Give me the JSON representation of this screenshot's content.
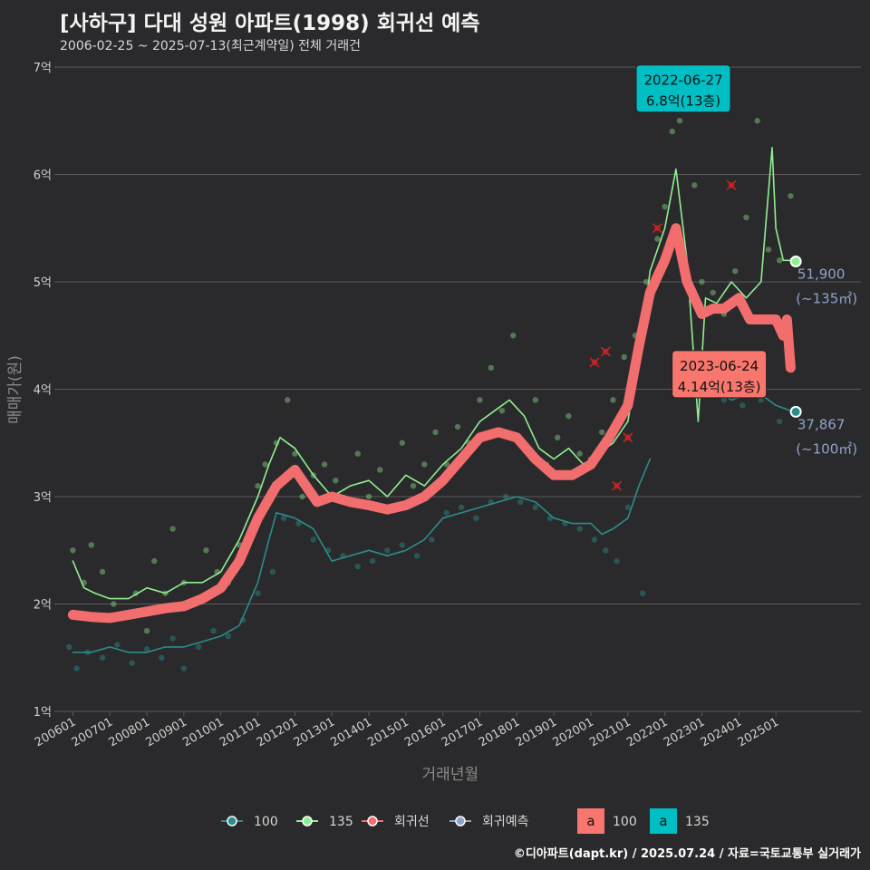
{
  "header": {
    "title": "[사하구] 다대 성원 아파트(1998) 회귀선 예측",
    "subtitle": "2006-02-25 ~ 2025-07-13(최근계약일) 전체 거래건"
  },
  "credit": "©디아파트(dapt.kr) / 2025.07.24 / 자료=국토교통부 실거래가",
  "colors": {
    "background": "#2a2a2c",
    "grid": "#5a5a5c",
    "s100": "#2b8c8c",
    "s135": "#90ee90",
    "regression": "#f26d6d",
    "forecast": "#8fa3c8",
    "label100": "#f8766d",
    "label135": "#00bfc4"
  },
  "chart_data": {
    "type": "line",
    "xlabel": "거래년월",
    "ylabel": "매매가(원)",
    "ylim": [
      1,
      7
    ],
    "yticks": [
      1,
      2,
      3,
      4,
      5,
      6,
      7
    ],
    "ytick_labels": [
      "1억",
      "2억",
      "3억",
      "4억",
      "5억",
      "6억",
      "7억"
    ],
    "xlim": [
      2005.5,
      2027.3
    ],
    "xticks": [
      2006,
      2007,
      2008,
      2009,
      2010,
      2011,
      2012,
      2013,
      2014,
      2015,
      2016,
      2017,
      2018,
      2019,
      2020,
      2021,
      2022,
      2023,
      2024,
      2025
    ],
    "xtick_labels": [
      "200601",
      "200701",
      "200801",
      "200901",
      "201001",
      "201101",
      "201201",
      "201301",
      "201401",
      "201501",
      "201601",
      "201701",
      "201801",
      "201901",
      "202001",
      "202101",
      "202201",
      "202301",
      "202401",
      "202501"
    ],
    "grid": true,
    "series": [
      {
        "name": "100",
        "x": [
          2006.0,
          2006.5,
          2007.0,
          2007.5,
          2008.0,
          2008.5,
          2009.0,
          2009.5,
          2010.0,
          2010.5,
          2011.0,
          2011.3,
          2011.5,
          2012.0,
          2012.5,
          2013.0,
          2013.5,
          2014.0,
          2014.5,
          2015.0,
          2015.5,
          2016.0,
          2016.5,
          2017.0,
          2017.5,
          2018.0,
          2018.5,
          2019.0,
          2019.5,
          2020.0,
          2020.3,
          2020.6,
          2021.0,
          2021.3,
          2021.6
        ],
        "y": [
          1.55,
          1.55,
          1.6,
          1.55,
          1.55,
          1.6,
          1.6,
          1.65,
          1.7,
          1.8,
          2.2,
          2.6,
          2.85,
          2.8,
          2.7,
          2.4,
          2.45,
          2.5,
          2.45,
          2.5,
          2.6,
          2.8,
          2.85,
          2.9,
          2.95,
          3.0,
          2.95,
          2.8,
          2.75,
          2.75,
          2.65,
          2.7,
          2.8,
          3.1,
          3.35
        ]
      },
      {
        "name": "100-recent",
        "x": [
          2023.0,
          2023.4,
          2023.8,
          2024.2,
          2024.6,
          2025.0,
          2025.4
        ],
        "y": [
          4.15,
          4.0,
          3.9,
          3.95,
          3.95,
          3.85,
          3.8
        ]
      },
      {
        "name": "135",
        "x": [
          2006.0,
          2006.3,
          2006.6,
          2007.0,
          2007.5,
          2008.0,
          2008.5,
          2009.0,
          2009.5,
          2010.0,
          2010.5,
          2011.0,
          2011.3,
          2011.6,
          2012.0,
          2012.5,
          2013.0,
          2013.5,
          2014.0,
          2014.5,
          2015.0,
          2015.5,
          2016.0,
          2016.5,
          2017.0,
          2017.4,
          2017.8,
          2018.2,
          2018.6,
          2019.0,
          2019.4,
          2019.8,
          2020.2,
          2020.6,
          2021.0,
          2021.3,
          2021.6,
          2022.0,
          2022.3,
          2022.6,
          2022.9,
          2023.1,
          2023.4,
          2023.8,
          2024.2,
          2024.6,
          2024.9,
          2025.0,
          2025.2,
          2025.5
        ],
        "y": [
          2.4,
          2.15,
          2.1,
          2.05,
          2.05,
          2.15,
          2.1,
          2.2,
          2.2,
          2.3,
          2.6,
          3.0,
          3.3,
          3.55,
          3.45,
          3.2,
          3.0,
          3.1,
          3.15,
          3.0,
          3.2,
          3.1,
          3.3,
          3.45,
          3.7,
          3.8,
          3.9,
          3.75,
          3.45,
          3.35,
          3.45,
          3.3,
          3.4,
          3.5,
          3.7,
          4.3,
          5.1,
          5.5,
          6.05,
          5.2,
          3.7,
          4.85,
          4.8,
          5.0,
          4.85,
          5.0,
          6.25,
          5.5,
          5.2,
          5.2
        ]
      },
      {
        "name": "회귀선",
        "x": [
          2006.0,
          2006.5,
          2007.0,
          2007.5,
          2008.0,
          2008.5,
          2009.0,
          2009.5,
          2010.0,
          2010.5,
          2011.0,
          2011.5,
          2012.0,
          2012.3,
          2012.6,
          2013.0,
          2013.5,
          2014.0,
          2014.5,
          2015.0,
          2015.5,
          2016.0,
          2016.5,
          2017.0,
          2017.5,
          2018.0,
          2018.5,
          2019.0,
          2019.5,
          2020.0,
          2020.5,
          2021.0,
          2021.3,
          2021.6,
          2022.0,
          2022.3,
          2022.6,
          2023.0,
          2023.3,
          2023.6,
          2024.0,
          2024.3,
          2024.6,
          2025.0,
          2025.2,
          2025.3,
          2025.4
        ],
        "y": [
          1.9,
          1.88,
          1.87,
          1.9,
          1.93,
          1.96,
          1.98,
          2.05,
          2.15,
          2.4,
          2.8,
          3.1,
          3.25,
          3.1,
          2.95,
          3.0,
          2.95,
          2.92,
          2.88,
          2.92,
          3.0,
          3.15,
          3.35,
          3.55,
          3.6,
          3.55,
          3.35,
          3.2,
          3.2,
          3.3,
          3.55,
          3.85,
          4.4,
          4.9,
          5.2,
          5.5,
          5.0,
          4.7,
          4.75,
          4.75,
          4.85,
          4.65,
          4.65,
          4.65,
          4.5,
          4.65,
          4.2
        ]
      }
    ],
    "scatter_100": {
      "x": [
        2005.9,
        2006.1,
        2006.4,
        2006.8,
        2007.2,
        2007.6,
        2008.0,
        2008.4,
        2008.7,
        2009.0,
        2009.4,
        2009.8,
        2010.2,
        2010.6,
        2011.0,
        2011.4,
        2011.7,
        2012.1,
        2012.5,
        2012.9,
        2013.3,
        2013.7,
        2014.1,
        2014.5,
        2014.9,
        2015.3,
        2015.7,
        2016.1,
        2016.5,
        2016.9,
        2017.3,
        2017.7,
        2018.1,
        2018.5,
        2018.9,
        2019.3,
        2019.7,
        2020.1,
        2020.4,
        2020.7,
        2021.0,
        2021.4,
        2023.1,
        2023.6,
        2024.1,
        2024.6,
        2025.1
      ],
      "y": [
        1.6,
        1.4,
        1.55,
        1.5,
        1.62,
        1.45,
        1.58,
        1.5,
        1.68,
        1.4,
        1.6,
        1.75,
        1.7,
        1.85,
        2.1,
        2.3,
        2.8,
        2.75,
        2.6,
        2.5,
        2.45,
        2.35,
        2.4,
        2.5,
        2.55,
        2.45,
        2.6,
        2.85,
        2.9,
        2.8,
        2.95,
        3.0,
        2.95,
        2.9,
        2.8,
        2.75,
        2.7,
        2.6,
        2.5,
        2.4,
        2.9,
        2.1,
        3.95,
        3.9,
        3.85,
        3.9,
        3.7
      ]
    },
    "scatter_135": {
      "x": [
        2006.0,
        2006.3,
        2006.5,
        2006.8,
        2007.1,
        2007.4,
        2007.7,
        2008.0,
        2008.2,
        2008.5,
        2008.7,
        2009.0,
        2009.3,
        2009.6,
        2009.9,
        2010.2,
        2010.5,
        2010.8,
        2011.0,
        2011.2,
        2011.5,
        2011.8,
        2012.0,
        2012.2,
        2012.5,
        2012.8,
        2013.1,
        2013.4,
        2013.7,
        2014.0,
        2014.3,
        2014.6,
        2014.9,
        2015.2,
        2015.5,
        2015.8,
        2016.1,
        2016.4,
        2016.7,
        2017.0,
        2017.3,
        2017.6,
        2017.9,
        2018.2,
        2018.5,
        2018.8,
        2019.1,
        2019.4,
        2019.7,
        2020.0,
        2020.3,
        2020.6,
        2020.9,
        2021.2,
        2021.5,
        2021.8,
        2022.0,
        2022.2,
        2022.4,
        2022.6,
        2022.8,
        2023.0,
        2023.3,
        2023.6,
        2023.9,
        2024.2,
        2024.5,
        2024.8,
        2025.1,
        2025.4
      ],
      "y": [
        2.5,
        2.2,
        2.55,
        2.3,
        2.0,
        1.9,
        2.1,
        1.75,
        2.4,
        2.1,
        2.7,
        2.2,
        2.0,
        2.5,
        2.3,
        2.2,
        2.55,
        2.7,
        3.1,
        3.3,
        3.5,
        3.9,
        3.4,
        3.0,
        3.2,
        3.3,
        3.15,
        2.95,
        3.4,
        3.0,
        3.25,
        2.9,
        3.5,
        3.1,
        3.3,
        3.6,
        3.3,
        3.65,
        3.5,
        3.9,
        4.2,
        3.8,
        4.5,
        3.5,
        3.9,
        3.3,
        3.55,
        3.75,
        3.4,
        3.35,
        3.6,
        3.9,
        4.3,
        4.5,
        5.0,
        5.4,
        5.7,
        6.4,
        6.5,
        6.8,
        5.9,
        5.0,
        4.9,
        4.7,
        5.1,
        5.6,
        6.5,
        5.3,
        5.2,
        5.8
      ]
    },
    "cancelled_points": {
      "x": [
        2020.1,
        2020.4,
        2020.7,
        2021.0,
        2021.8,
        2023.8,
        2024.6
      ],
      "y": [
        4.25,
        4.35,
        3.1,
        3.55,
        5.5,
        5.9,
        4.3
      ]
    },
    "annotations": [
      {
        "x": 2022.5,
        "y": 6.8,
        "date": "2022-06-27",
        "price": "6.8억(13층)",
        "series": "135"
      },
      {
        "x": 2023.47,
        "y": 4.14,
        "date": "2023-06-24",
        "price": "4.14억(13층)",
        "series": "100"
      }
    ],
    "end_labels": [
      {
        "x": 2025.54,
        "y": 5.19,
        "value": "51,900",
        "area": "(~135㎡)"
      },
      {
        "x": 2025.54,
        "y": 3.79,
        "value": "37,867",
        "area": "(~100㎡)"
      }
    ],
    "legend": {
      "position": "bottom",
      "items": [
        "100",
        "135",
        "회귀선",
        "회귀예측"
      ],
      "label_items": [
        {
          "symbol": "a",
          "name": "100"
        },
        {
          "symbol": "a",
          "name": "135"
        }
      ]
    }
  }
}
